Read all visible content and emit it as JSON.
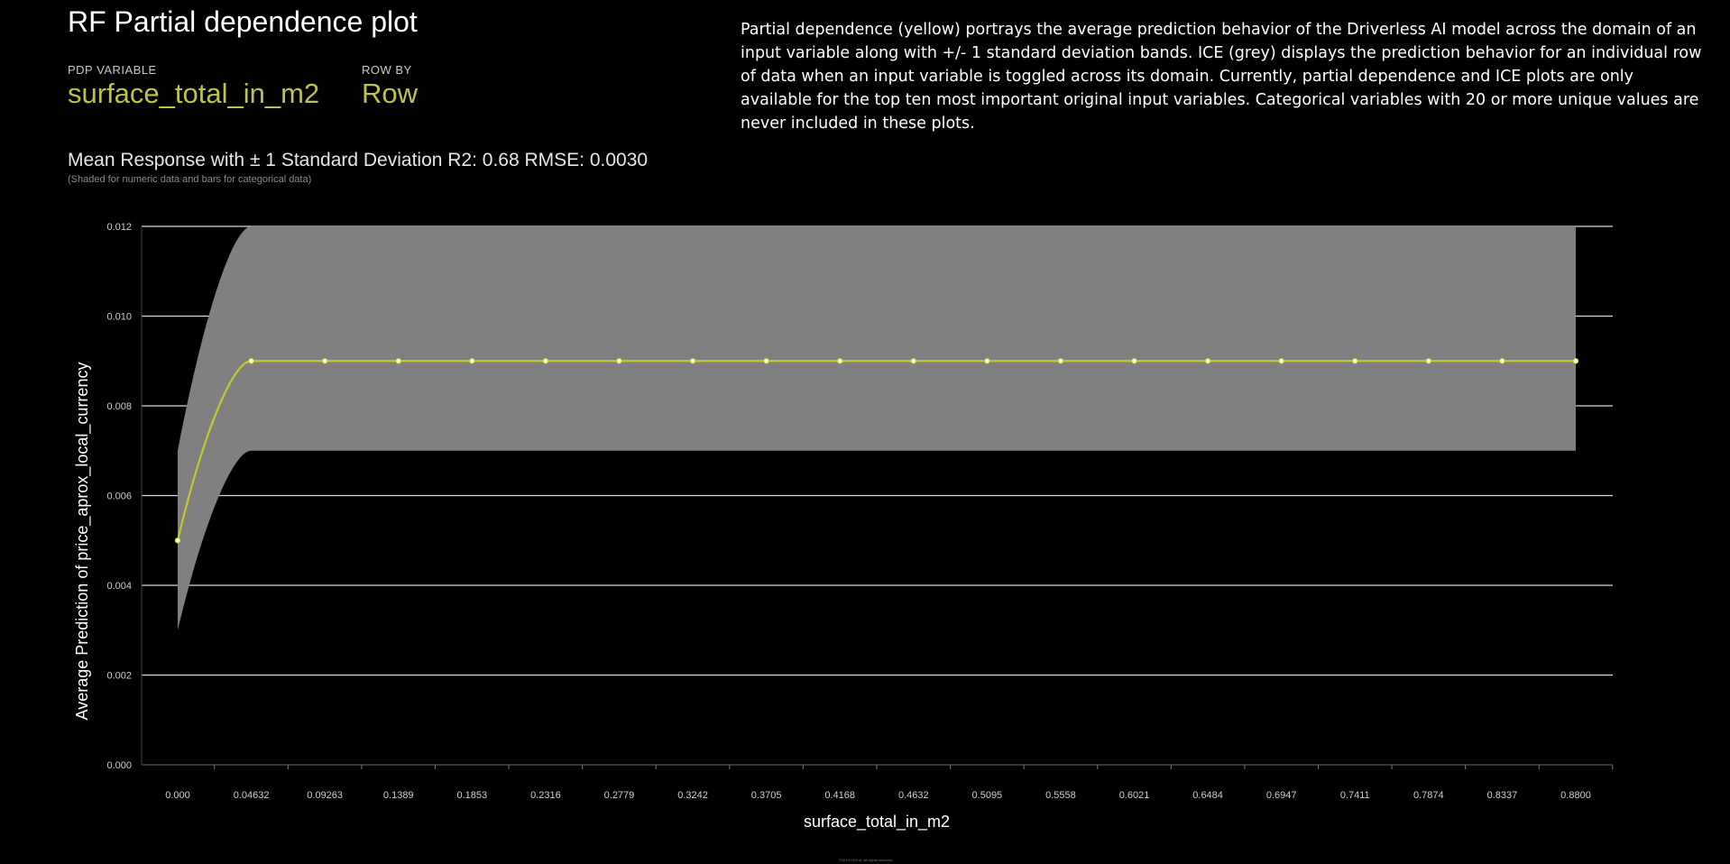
{
  "page": {
    "title": "RF Partial dependence plot",
    "pdp_variable_label": "PDP VARIABLE",
    "pdp_variable_value": "surface_total_in_m2",
    "row_by_label": "ROW BY",
    "row_by_value": "Row",
    "description": "Partial dependence (yellow) portrays the average prediction behavior of the Driverless AI model across the domain of an input variable along with +/- 1 standard deviation bands. ICE (grey) displays the prediction behavior for an individual row of data when an input variable is toggled across its domain. Currently, partial dependence and ICE plots are only available for the top ten most important original input variables. Categorical variables with 20 or more unique values are never included in these plots.",
    "footer": "©2019 H2O.ai. All rights reserved."
  },
  "chart_data": {
    "type": "line",
    "title": "Mean Response with ± 1 Standard Deviation R2: 0.68 RMSE: 0.0030",
    "subtitle": "(Shaded for numeric data and bars for categorical data)",
    "xlabel": "surface_total_in_m2",
    "ylabel": "Average Prediction of price_aprox_local_currency",
    "x_tick_labels": [
      "0.000",
      "0.04632",
      "0.09263",
      "0.1389",
      "0.1853",
      "0.2316",
      "0.2779",
      "0.3242",
      "0.3705",
      "0.4168",
      "0.4632",
      "0.5095",
      "0.5558",
      "0.6021",
      "0.6484",
      "0.6947",
      "0.7411",
      "0.7874",
      "0.8337",
      "0.8800"
    ],
    "y_tick_labels": [
      "0.000",
      "0.002",
      "0.004",
      "0.006",
      "0.008",
      "0.010",
      "0.012"
    ],
    "ylim": [
      0,
      0.012
    ],
    "grid": true,
    "series": [
      {
        "values": [
          0.005,
          0.009,
          0.009,
          0.009,
          0.009,
          0.009,
          0.009,
          0.009,
          0.009,
          0.009,
          0.009,
          0.009,
          0.009,
          0.009,
          0.009,
          0.009,
          0.009,
          0.009,
          0.009,
          0.009
        ],
        "upper": [
          0.007,
          0.012,
          0.012,
          0.012,
          0.012,
          0.012,
          0.012,
          0.012,
          0.012,
          0.012,
          0.012,
          0.012,
          0.012,
          0.012,
          0.012,
          0.012,
          0.012,
          0.012,
          0.012,
          0.012
        ],
        "lower": [
          0.003,
          0.007,
          0.007,
          0.007,
          0.007,
          0.007,
          0.007,
          0.007,
          0.007,
          0.007,
          0.007,
          0.007,
          0.007,
          0.007,
          0.007,
          0.007,
          0.007,
          0.007,
          0.007,
          0.007
        ]
      }
    ],
    "colors": {
      "line": "#c2ca2e",
      "band": "#808080",
      "grid": "#d9d9d9",
      "point": "#ffffcc"
    }
  }
}
